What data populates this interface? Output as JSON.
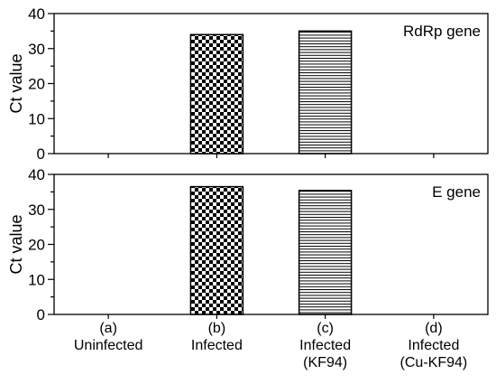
{
  "chart_data": {
    "type": "bar",
    "categories": [
      [
        "(a)",
        "Uninfected"
      ],
      [
        "(b)",
        "Infected"
      ],
      [
        "(c)",
        "Infected",
        "(KF94)"
      ],
      [
        "(d)",
        "Infected",
        "(Cu-KF94)"
      ]
    ],
    "ylim": [
      0,
      40
    ],
    "yticks": [
      0,
      10,
      20,
      30,
      40
    ],
    "panels": [
      {
        "label": "RdRp gene",
        "ylabel": "Ct value",
        "values": [
          null,
          34,
          35,
          null
        ],
        "patterns": [
          "none",
          "checker",
          "hlines",
          "none"
        ]
      },
      {
        "label": "E gene",
        "ylabel": "Ct value",
        "values": [
          null,
          36.5,
          35.4,
          null
        ],
        "patterns": [
          "none",
          "checker",
          "hlines",
          "none"
        ]
      }
    ]
  }
}
